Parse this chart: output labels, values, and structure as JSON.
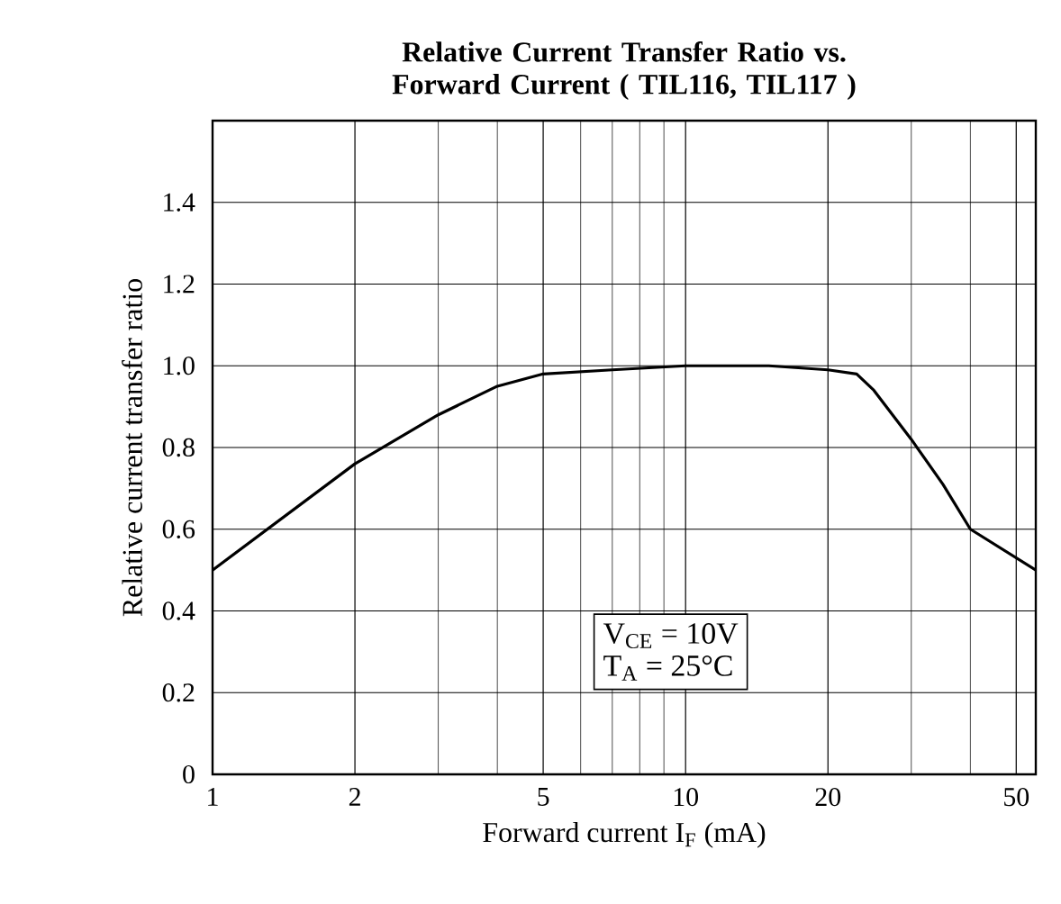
{
  "chart_data": {
    "type": "line",
    "title": "Relative Current Transfer Ratio vs. Forward Current ( TIL116, TIL117 )",
    "xlabel": "Forward current I$_{F}$ (mA)",
    "ylabel": "Relative current transfer ratio",
    "annotations": [
      "V$_{CE}$ = 10V",
      "T$_{A}$ = 25°C"
    ],
    "log": "x",
    "grid": true,
    "marker": "none",
    "line_style": "solid",
    "xlim": [
      1,
      55
    ],
    "xticks": [
      1,
      2,
      5,
      10,
      20,
      50
    ],
    "ylim": [
      0,
      1.6
    ],
    "yticks": [
      0,
      0.2,
      0.4,
      0.6,
      0.8,
      {
        "value": 1,
        "label": "1.0"
      },
      1.2,
      1.4
    ],
    "series": [
      {
        "color": "#000000",
        "x": [
          1,
          2,
          3,
          4,
          5,
          7,
          10,
          15,
          20,
          23,
          25,
          30,
          35,
          40,
          55
        ],
        "values": [
          0.5,
          0.76,
          0.88,
          0.95,
          0.98,
          0.99,
          1.0,
          1.0,
          0.99,
          0.98,
          0.94,
          0.82,
          0.71,
          0.6,
          0.5
        ]
      }
    ]
  }
}
